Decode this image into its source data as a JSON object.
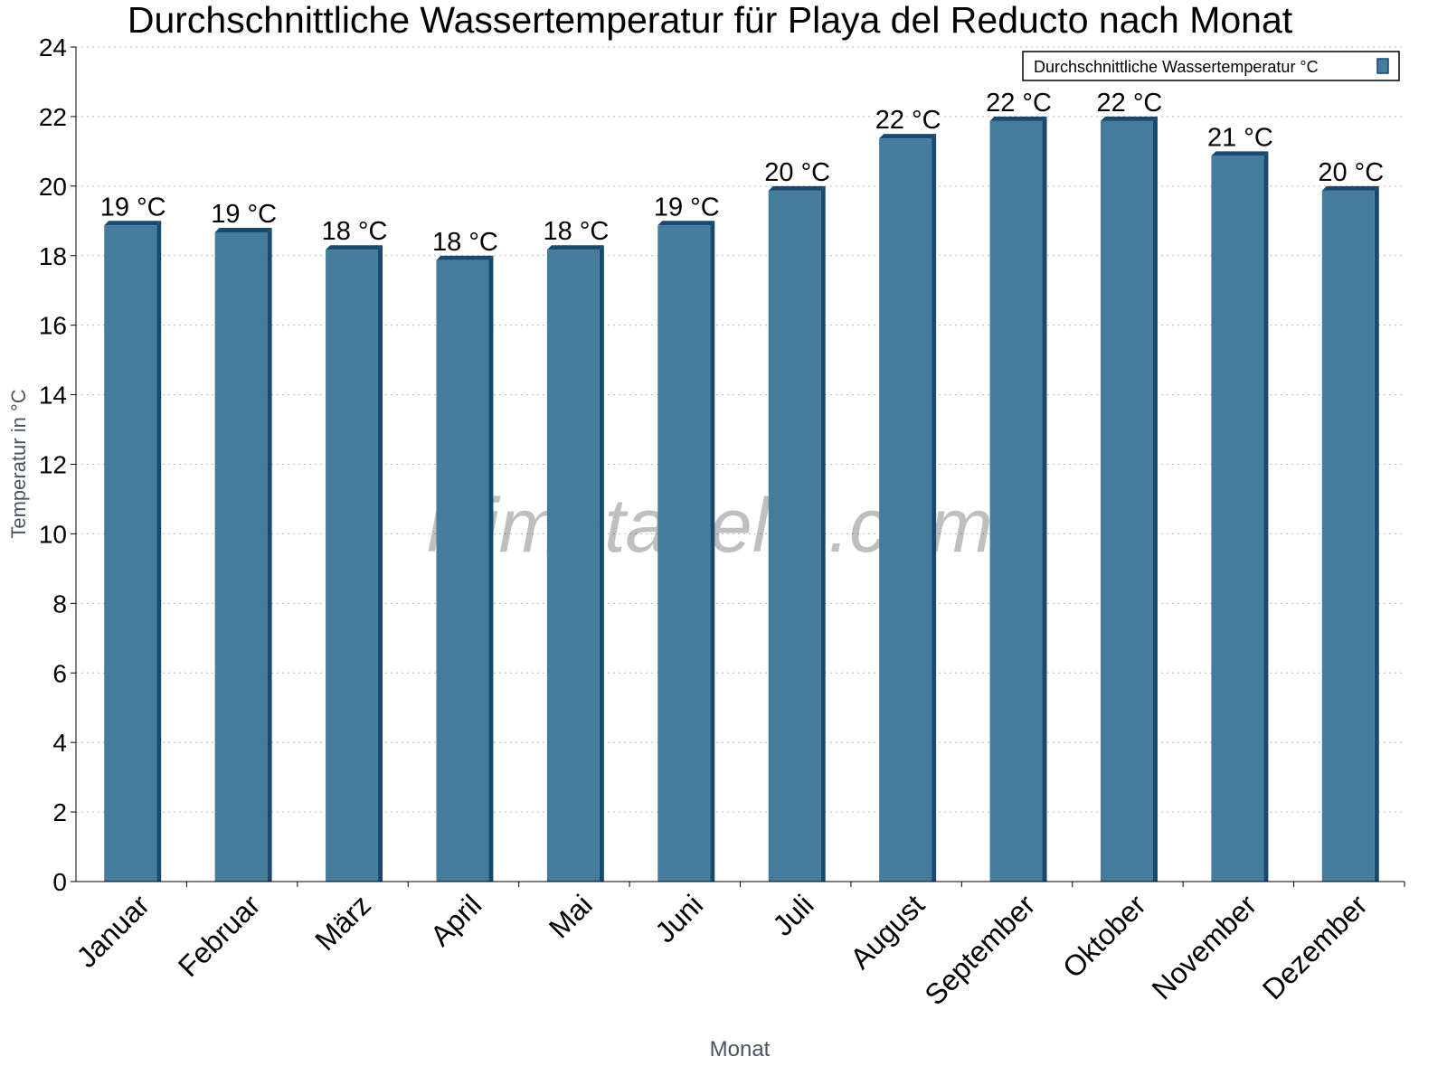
{
  "chart_data": {
    "type": "bar",
    "title": "Durchschnittliche Wassertemperatur für Playa del Reducto nach Monat",
    "xlabel": "Monat",
    "ylabel": "Temperatur in °C",
    "ylim": [
      0,
      24
    ],
    "yticks": [
      "0",
      "2",
      "4",
      "6",
      "8",
      "10",
      "12",
      "14",
      "16",
      "18",
      "20",
      "22",
      "24"
    ],
    "grid": true,
    "legend_position": "top-right",
    "categories": [
      "Januar",
      "Februar",
      "März",
      "April",
      "Mai",
      "Juni",
      "Juli",
      "August",
      "September",
      "Oktober",
      "November",
      "Dezember"
    ],
    "series": [
      {
        "name": "Durchschnittliche Wassertemperatur °C",
        "values": [
          19,
          18.8,
          18.3,
          18,
          18.3,
          19,
          20,
          21.5,
          22,
          22,
          21,
          20
        ],
        "labels": [
          "19 °C",
          "19 °C",
          "18 °C",
          "18 °C",
          "18 °C",
          "19 °C",
          "20 °C",
          "22 °C",
          "22 °C",
          "22 °C",
          "21 °C",
          "20 °C"
        ],
        "color": "#457b9d",
        "side_color": "#174a6c"
      }
    ],
    "watermark": "klimatabelle.com"
  }
}
